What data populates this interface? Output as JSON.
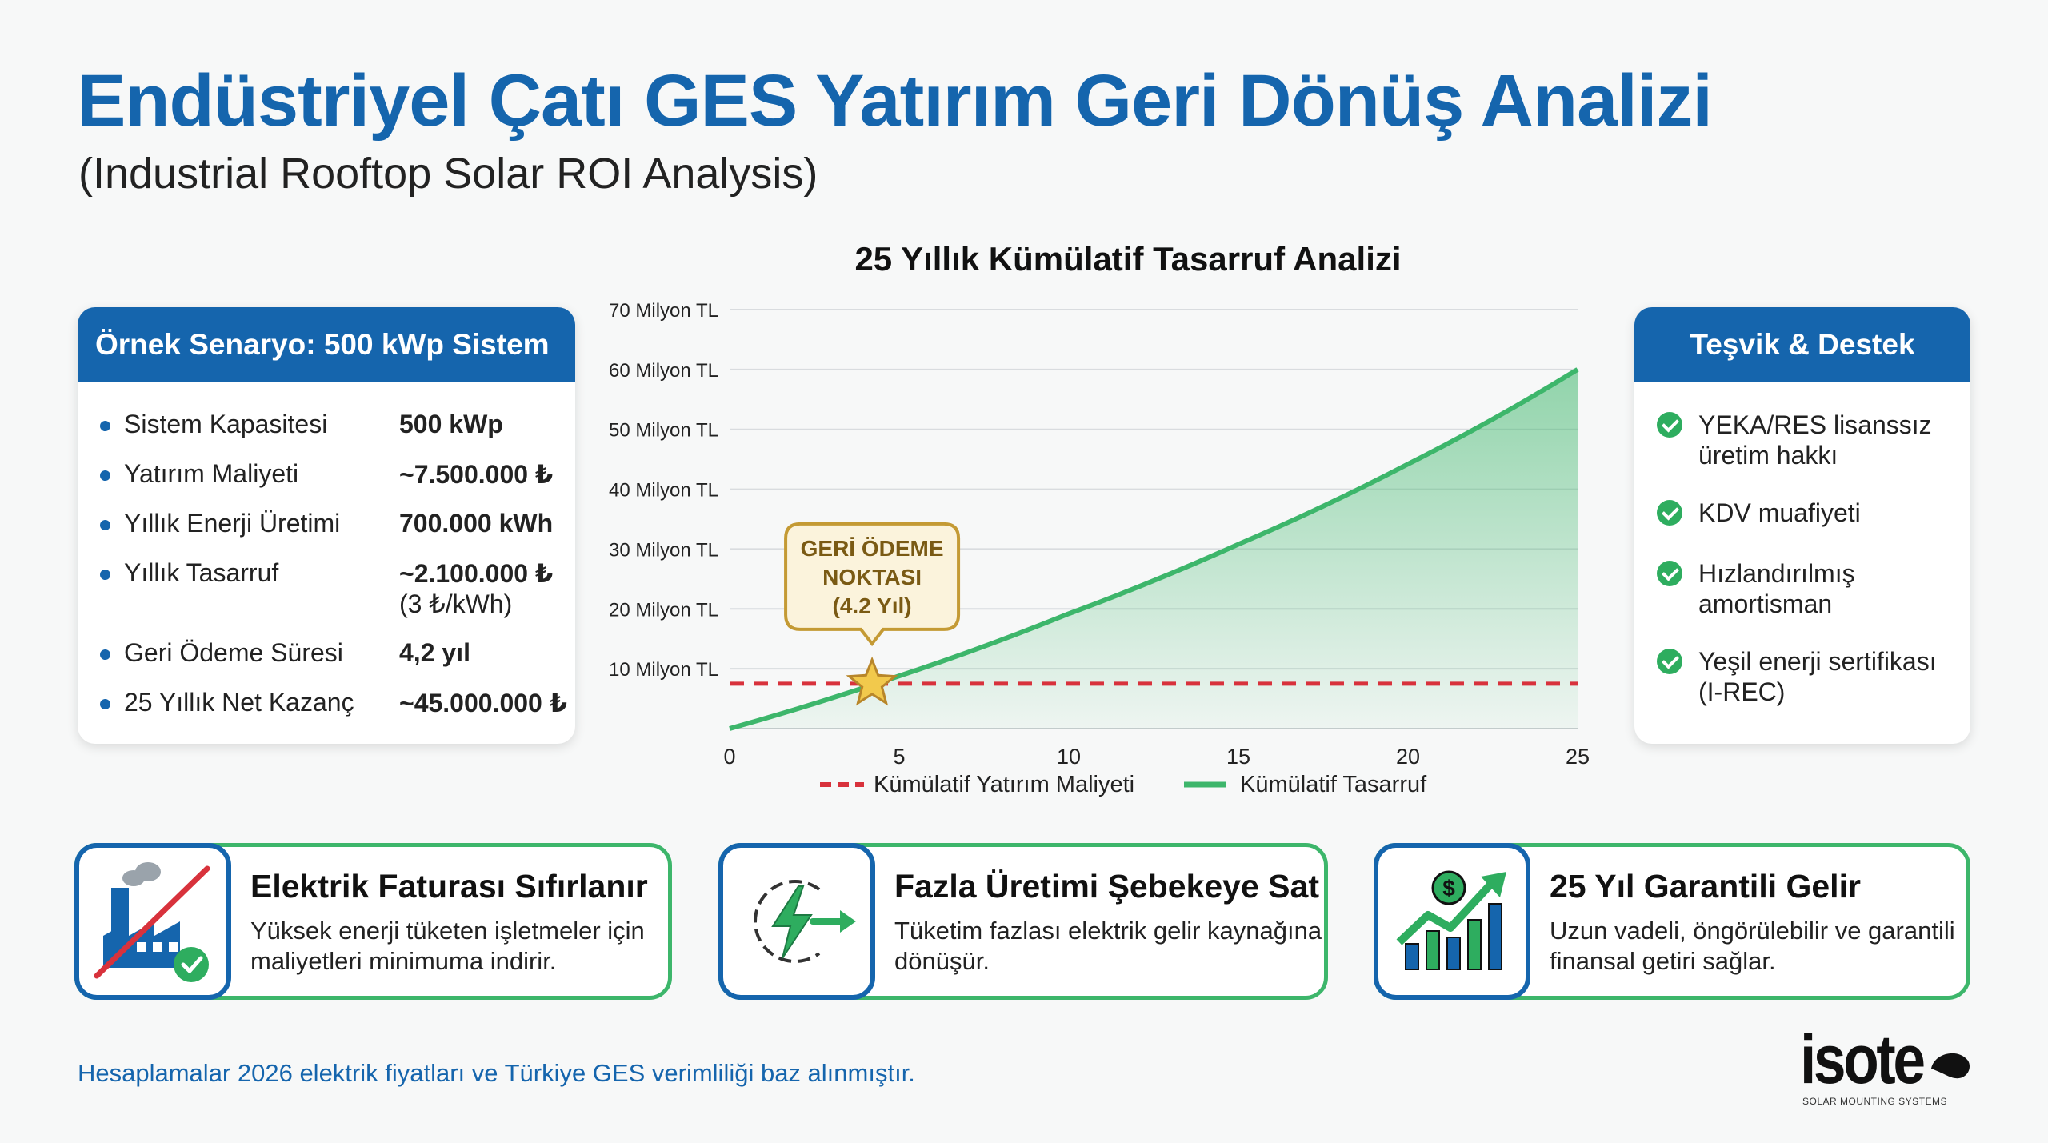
{
  "header": {
    "title": "Endüstriyel Çatı GES Yatırım Geri Dönüş Analizi",
    "subtitle": "(Industrial Rooftop Solar ROI Analysis)"
  },
  "scenario": {
    "title": "Örnek Senaryo: 500 kWp Sistem",
    "rows": [
      {
        "label": "Sistem Kapasitesi",
        "value": "500 kWp",
        "sub": ""
      },
      {
        "label": "Yatırım Maliyeti",
        "value": "~7.500.000 ₺",
        "sub": ""
      },
      {
        "label": "Yıllık Enerji Üretimi",
        "value": "700.000 kWh",
        "sub": ""
      },
      {
        "label": "Yıllık Tasarruf",
        "value": "~2.100.000 ₺",
        "sub": "(3 ₺/kWh)"
      },
      {
        "label": "Geri Ödeme Süresi",
        "value": "4,2 yıl",
        "sub": ""
      },
      {
        "label": "25 Yıllık Net Kazanç",
        "value": "~45.000.000 ₺",
        "sub": ""
      }
    ]
  },
  "incentives": {
    "title": "Teşvik & Destek",
    "items": [
      "YEKA/RES lisanssız üretim hakkı",
      "KDV muafiyeti",
      "Hızlandırılmış amortisman",
      "Yeşil enerji sertifikası (I-REC)"
    ]
  },
  "chart_data": {
    "type": "area",
    "title": "25 Yıllık Kümülatif Tasarruf Analizi",
    "xlabel": "",
    "ylabel": "",
    "xlim": [
      0,
      25
    ],
    "ylim": [
      0,
      70
    ],
    "x_ticks": [
      0,
      5,
      10,
      15,
      20,
      25
    ],
    "y_ticks": [
      10,
      20,
      30,
      40,
      50,
      60,
      70
    ],
    "y_tick_labels": [
      "10 Milyon TL",
      "20 Milyon TL",
      "30 Milyon TL",
      "40 Milyon TL",
      "50 Milyon TL",
      "60 Milyon TL",
      "70 Milyon TL"
    ],
    "grid": true,
    "legend_position": "bottom",
    "series": [
      {
        "name": "Kümülatif Yatırım Maliyeti",
        "style": "dashed",
        "color": "#d8323c",
        "x": [
          0,
          25
        ],
        "y": [
          7.5,
          7.5
        ]
      },
      {
        "name": "Kümülatif Tasarruf",
        "style": "solid-area",
        "color": "#3db66b",
        "x": [
          0,
          5,
          10,
          15,
          20,
          25
        ],
        "y": [
          0,
          8.8,
          19.2,
          30.8,
          44.2,
          60
        ]
      }
    ],
    "annotation": {
      "text_lines": [
        "GERİ ÖDEME",
        "NOKTASI",
        "(4.2 Yıl)"
      ],
      "x": 4.2,
      "y": 7.5,
      "marker": "star-icon"
    }
  },
  "features": [
    {
      "icon": "factory-off-icon",
      "title": "Elektrik Faturası Sıfırlanır",
      "desc": "Yüksek enerji tüketen işletmeler için maliyetleri minimuma indirir."
    },
    {
      "icon": "energy-export-icon",
      "title": "Fazla Üretimi Şebekeye Sat",
      "desc": "Tüketim fazlası elektrik gelir kaynağına dönüşür."
    },
    {
      "icon": "growth-chart-icon",
      "title": "25 Yıl Garantili Gelir",
      "desc": "Uzun vadeli, öngörülebilir ve garantili finansal getiri sağlar."
    }
  ],
  "footnote": "Hesaplamalar 2026 elektrik fiyatları ve Türkiye GES verimliliği baz alınmıştır.",
  "logo": {
    "wordmark": "isote",
    "tagline": "SOLAR MOUNTING SYSTEMS"
  },
  "colors": {
    "primary": "#1565ad",
    "accent_green": "#3db66b",
    "cost_red": "#d8323c",
    "annotation_gold": "#c49a34"
  }
}
